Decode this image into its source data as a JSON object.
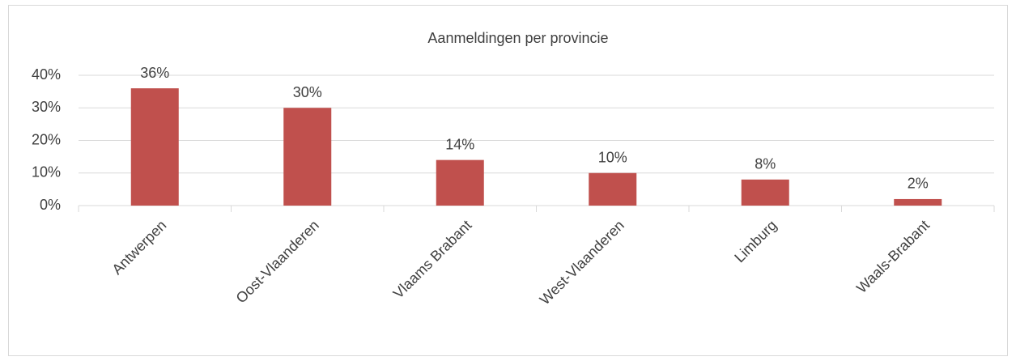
{
  "chart_data": {
    "type": "bar",
    "title": "Aanmeldingen per provincie",
    "categories": [
      "Antwerpen",
      "Oost-Vlaanderen",
      "Vlaams Brabant",
      "West-Vlaanderen",
      "Limburg",
      "Waals-Brabant"
    ],
    "values": [
      36,
      30,
      14,
      10,
      8,
      2
    ],
    "value_labels": [
      "36%",
      "30%",
      "14%",
      "10%",
      "8%",
      "2%"
    ],
    "color": "#c0504d",
    "ylim": [
      0,
      40
    ],
    "yticks": [
      {
        "value": 0,
        "label": "0%"
      },
      {
        "value": 10,
        "label": "10%"
      },
      {
        "value": 20,
        "label": "20%"
      },
      {
        "value": 30,
        "label": "30%"
      },
      {
        "value": 40,
        "label": "40%"
      }
    ],
    "grid": true
  }
}
